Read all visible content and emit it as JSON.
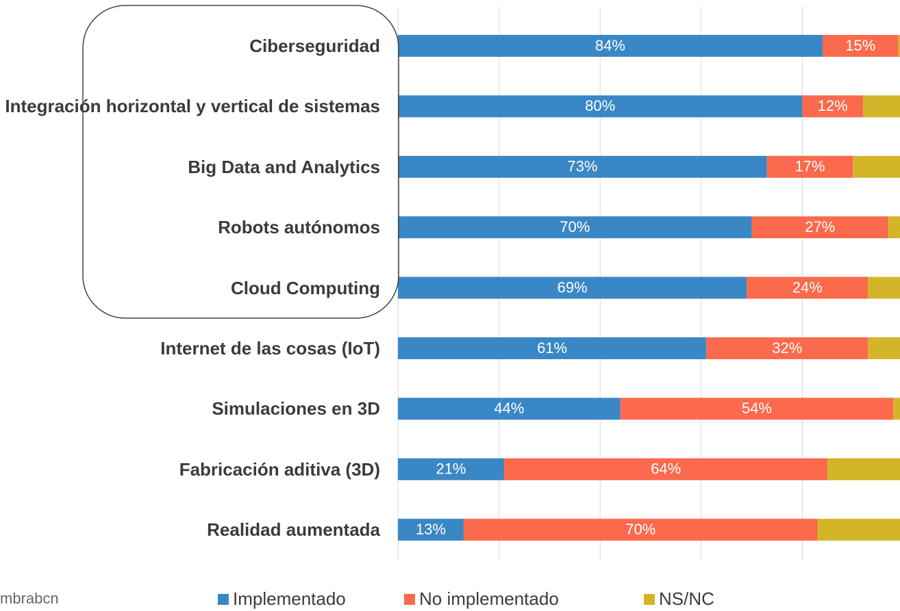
{
  "chart_data": {
    "type": "stacked_bar_horizontal",
    "categories": [
      "Ciberseguridad",
      "Integración horizontal y vertical de sistemas",
      "Big Data and Analytics",
      "Robots autónomos",
      "Cloud Computing",
      "Internet de las cosas (IoT)",
      "Simulaciones en 3D",
      "Fabricación aditiva (3D)",
      "Realidad aumentada"
    ],
    "series": [
      {
        "name": "Implementado",
        "color": "#3a87c6",
        "values": [
          84,
          80,
          73,
          70,
          69,
          61,
          44,
          21,
          13
        ],
        "value_labels": [
          "84%",
          "80%",
          "73%",
          "70%",
          "69%",
          "61%",
          "44%",
          "21%",
          "13%"
        ]
      },
      {
        "name": "No implementado",
        "color": "#fb6a4c",
        "values": [
          15,
          12,
          17,
          27,
          24,
          32,
          54,
          64,
          70
        ],
        "value_labels": [
          "15%",
          "12%",
          "17%",
          "27%",
          "24%",
          "32%",
          "54%",
          "64%",
          "70%"
        ]
      },
      {
        "name": "NS/NC",
        "color": "#d4b52a",
        "values": [
          1,
          8,
          10,
          3,
          7,
          7,
          2,
          15,
          17
        ]
      }
    ],
    "xlim": [
      0,
      100
    ],
    "xticks": [
      0,
      20,
      40,
      60,
      80,
      100
    ],
    "grid": true,
    "legend": "bottom",
    "source": "mbrabcn"
  }
}
